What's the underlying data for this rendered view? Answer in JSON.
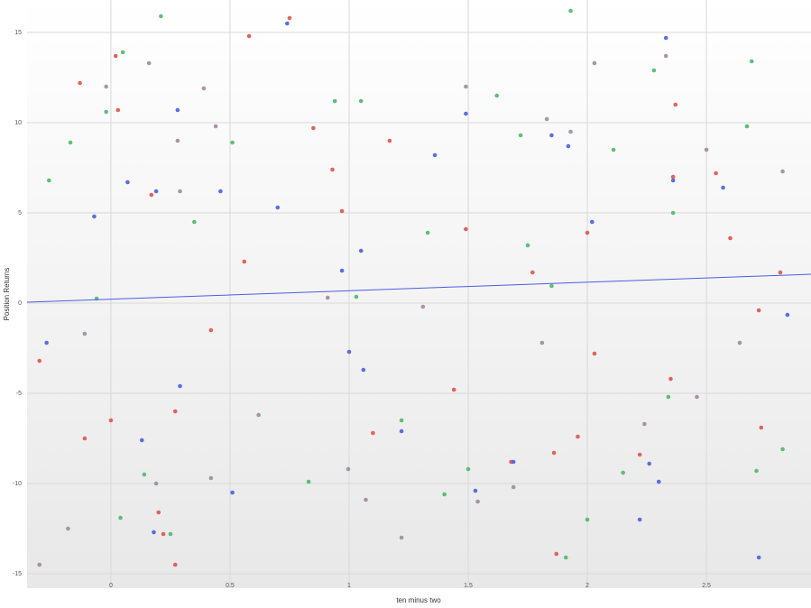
{
  "chart_data": {
    "type": "scatter",
    "x_label": "ten minus two",
    "y_label": "Position Returns",
    "xlim": [
      -0.352,
      2.939
    ],
    "ylim": [
      -15.8,
      16.8
    ],
    "xticks": [
      0,
      0.5,
      1,
      1.5,
      2,
      2.5
    ],
    "yticks": [
      15,
      10,
      5,
      0,
      -5,
      -10,
      -15
    ],
    "grid": true,
    "trend_line": {
      "color": "#4a5ee0",
      "x": [
        -0.352,
        2.939
      ],
      "y": [
        0.05,
        1.6
      ]
    },
    "series": [
      {
        "color": "#e0524a",
        "x": [
          -0.3,
          0,
          0.02,
          0.03,
          -0.13,
          -0.11,
          0.17,
          0.2,
          0.27,
          0.27,
          0.58,
          0.75,
          0.85,
          0.93,
          0.97,
          1.17,
          1.1,
          1.44,
          1.49,
          1.77,
          1.86,
          1.87,
          1.96,
          2.0,
          2.03,
          2.22,
          2.36,
          2.37,
          2.54,
          2.6,
          2.72,
          2.73,
          2.81,
          2.35,
          0.56,
          0.42,
          0.22,
          1.68
        ],
        "y": [
          -3.2,
          -6.5,
          13.7,
          10.7,
          12.2,
          -7.5,
          6.0,
          -11.6,
          -6.0,
          -14.5,
          14.8,
          15.8,
          9.7,
          7.4,
          5.1,
          9.0,
          -7.2,
          -4.8,
          4.1,
          1.7,
          -8.3,
          -13.9,
          -7.4,
          3.9,
          -2.8,
          -8.4,
          7.0,
          11.0,
          7.2,
          3.6,
          -0.4,
          -6.9,
          1.7,
          -4.2,
          2.3,
          -1.5,
          -12.8,
          -8.8
        ]
      },
      {
        "color": "#4cb86a",
        "x": [
          -0.26,
          -0.17,
          -0.02,
          0.05,
          0.21,
          1.93,
          0.04,
          0.14,
          0.25,
          0.51,
          0.83,
          0.94,
          1.05,
          1.22,
          1.4,
          1.5,
          1.62,
          1.72,
          1.91,
          2.0,
          2.11,
          2.28,
          2.36,
          2.69,
          2.67,
          2.71,
          2.82,
          2.15,
          2.34,
          -0.06,
          0.35,
          1.75,
          1.03,
          1.33,
          1.85
        ],
        "y": [
          6.8,
          8.9,
          10.6,
          13.9,
          15.9,
          16.2,
          -11.9,
          -9.5,
          -12.8,
          8.9,
          -9.9,
          11.2,
          11.2,
          -6.5,
          -10.6,
          -9.2,
          11.5,
          9.3,
          -14.1,
          -12,
          8.5,
          12.9,
          5.0,
          13.4,
          9.8,
          -9.3,
          -8.1,
          -9.4,
          -5.2,
          0.25,
          4.5,
          3.2,
          0.35,
          3.9,
          0.95
        ]
      },
      {
        "color": "#4a5ee0",
        "x": [
          -0.27,
          -0.07,
          0.07,
          0.28,
          0.19,
          0.13,
          0.18,
          0.29,
          0.46,
          0.51,
          0.74,
          0.7,
          0.97,
          1.0,
          1.06,
          1.22,
          1.36,
          1.49,
          1.53,
          1.85,
          1.92,
          2.33,
          2.22,
          2.3,
          2.36,
          2.57,
          2.72,
          2.84,
          1.69,
          2.02,
          2.26,
          1.05
        ],
        "y": [
          -2.2,
          4.8,
          6.7,
          10.7,
          6.2,
          -7.6,
          -12.7,
          -4.6,
          6.2,
          -10.5,
          15.5,
          5.3,
          1.8,
          -2.7,
          -3.7,
          -7.1,
          8.2,
          10.5,
          -10.4,
          9.3,
          8.7,
          14.7,
          -12,
          -9.9,
          6.8,
          6.4,
          -14.1,
          -0.65,
          -8.8,
          4.5,
          -8.9,
          2.9
        ]
      },
      {
        "color": "#a08a9a",
        "x": [
          -0.3,
          -0.18,
          -0.02,
          0.16,
          0.39,
          0.44,
          0.28,
          0.19,
          0.42,
          0.62,
          0.996,
          1.07,
          1.22,
          1.49,
          1.54,
          1.69,
          1.83,
          1.93,
          2.03,
          2.24,
          2.33,
          2.46,
          2.82,
          2.5,
          0.29,
          0.91,
          1.31,
          1.81,
          2.64,
          -0.11
        ],
        "y": [
          -14.5,
          -12.5,
          12.0,
          13.3,
          11.9,
          9.8,
          9.0,
          -10.0,
          -9.7,
          -6.2,
          -9.2,
          -10.9,
          -13,
          12.0,
          -11,
          -10.2,
          10.2,
          9.5,
          13.3,
          -6.7,
          13.7,
          -5.2,
          7.3,
          8.5,
          6.2,
          0.3,
          -0.2,
          -2.2,
          -2.2,
          -1.7
        ]
      }
    ]
  }
}
